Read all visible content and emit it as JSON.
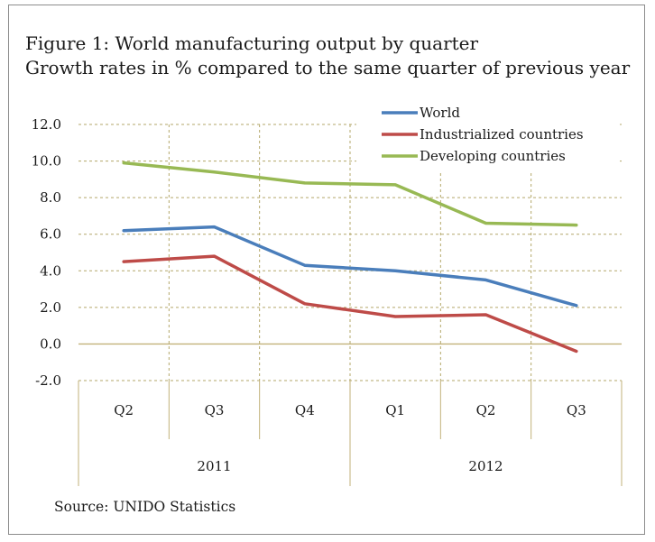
{
  "title": "Figure 1: World manufacturing output by quarter",
  "subtitle": "Growth rates in % compared to the same quarter of previous year",
  "source": "Source: UNIDO Statistics",
  "chart_data": {
    "type": "line",
    "categories": [
      "Q2",
      "Q3",
      "Q4",
      "Q1",
      "Q2",
      "Q3"
    ],
    "years": [
      {
        "label": "2011",
        "span": [
          0,
          2
        ]
      },
      {
        "label": "2012",
        "span": [
          3,
          5
        ]
      }
    ],
    "series": [
      {
        "name": "World",
        "color": "#4a7ebb",
        "values": [
          6.2,
          6.4,
          4.3,
          4.0,
          3.5,
          2.1
        ]
      },
      {
        "name": "Industrialized countries",
        "color": "#be4b48",
        "values": [
          4.5,
          4.8,
          2.2,
          1.5,
          1.6,
          -0.4
        ]
      },
      {
        "name": "Developing countries",
        "color": "#98b954",
        "values": [
          9.9,
          9.4,
          8.8,
          8.7,
          6.6,
          6.5
        ]
      }
    ],
    "yticks": [
      "12.0",
      "10.0",
      "8.0",
      "6.0",
      "4.0",
      "2.0",
      "0.0",
      "-2.0"
    ],
    "ylim": [
      -2,
      12
    ],
    "ystep": 2,
    "grid": true,
    "legend": "top-right"
  }
}
